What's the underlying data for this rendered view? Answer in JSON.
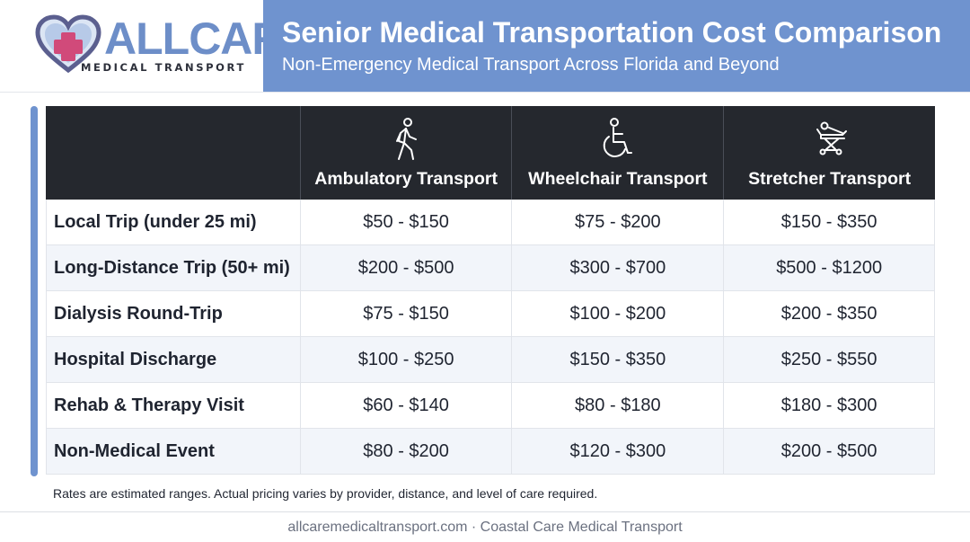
{
  "logo": {
    "wordmark": "ALLCARE",
    "tagline": "MEDICAL TRANSPORT",
    "colors": {
      "heart_outline": "#5b5f8f",
      "heart_fill": "#7fa0d4",
      "cross": "#d14a7a"
    }
  },
  "header": {
    "title": "Senior Medical Transportation Cost Comparison",
    "subtitle": "Non-Emergency Medical Transport Across Florida and Beyond",
    "banner_color": "#6f93cf"
  },
  "table": {
    "columns": [
      {
        "label": "Ambulatory Transport",
        "icon": "walking-person-icon"
      },
      {
        "label": "Wheelchair Transport",
        "icon": "wheelchair-icon"
      },
      {
        "label": "Stretcher Transport",
        "icon": "stretcher-icon"
      }
    ],
    "rows": [
      {
        "label": "Local Trip (under 25 mi)",
        "values": [
          "$50 - $150",
          "$75 - $200",
          "$150 - $350"
        ]
      },
      {
        "label": "Long-Distance Trip (50+ mi)",
        "values": [
          "$200 - $500",
          "$300 - $700",
          "$500 - $1200"
        ]
      },
      {
        "label": "Dialysis Round-Trip",
        "values": [
          "$75 - $150",
          "$100 - $200",
          "$200 - $350"
        ]
      },
      {
        "label": "Hospital Discharge",
        "values": [
          "$100 - $250",
          "$150 - $350",
          "$250 - $550"
        ]
      },
      {
        "label": "Rehab & Therapy Visit",
        "values": [
          "$60 - $140",
          "$80 - $180",
          "$180 - $300"
        ]
      },
      {
        "label": "Non-Medical Event",
        "values": [
          "$80 - $200",
          "$120 - $300",
          "$200 - $500"
        ]
      }
    ]
  },
  "note": "Rates are estimated ranges. Actual pricing varies by provider, distance, and level of care required.",
  "footer": "allcaremedicaltransport.com · Coastal Care Medical Transport"
}
